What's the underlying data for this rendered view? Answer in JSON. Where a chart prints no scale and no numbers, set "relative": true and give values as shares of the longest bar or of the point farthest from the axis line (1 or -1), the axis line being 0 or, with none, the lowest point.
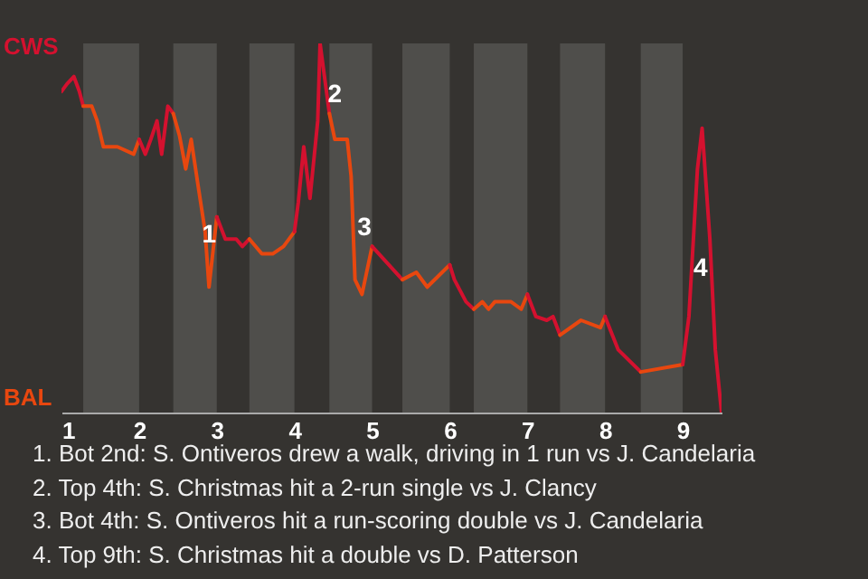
{
  "chart_data": {
    "type": "line",
    "relative": true,
    "series": [
      {
        "color": "#d4112f",
        "x": [
          1.0,
          1.07,
          1.16,
          1.23,
          1.28
        ],
        "values": [
          0.87,
          0.89,
          0.91,
          0.87,
          0.83
        ]
      },
      {
        "color": "#e8470f",
        "x": [
          1.28,
          1.39,
          1.46,
          1.54,
          1.72,
          1.93,
          2.0
        ],
        "values": [
          0.83,
          0.83,
          0.79,
          0.72,
          0.72,
          0.7,
          0.74
        ]
      },
      {
        "color": "#d4112f",
        "x": [
          2.0,
          2.08,
          2.15,
          2.23,
          2.29,
          2.37,
          2.44
        ],
        "values": [
          0.74,
          0.7,
          0.74,
          0.79,
          0.7,
          0.83,
          0.81
        ]
      },
      {
        "color": "#e8470f",
        "x": [
          2.44,
          2.52,
          2.6,
          2.67,
          2.77,
          2.85,
          2.9,
          3.0
        ],
        "values": [
          0.81,
          0.75,
          0.66,
          0.74,
          0.6,
          0.49,
          0.34,
          0.53
        ]
      },
      {
        "color": "#d4112f",
        "x": [
          3.0,
          3.11,
          3.25,
          3.33,
          3.42
        ],
        "values": [
          0.53,
          0.47,
          0.47,
          0.45,
          0.47
        ]
      },
      {
        "color": "#e8470f",
        "x": [
          3.42,
          3.58,
          3.72,
          3.86,
          4.0
        ],
        "values": [
          0.47,
          0.43,
          0.43,
          0.45,
          0.49
        ]
      },
      {
        "color": "#d4112f",
        "x": [
          4.0,
          4.05,
          4.12,
          4.2,
          4.3,
          4.33,
          4.45
        ],
        "values": [
          0.49,
          0.57,
          0.72,
          0.58,
          0.79,
          1,
          0.81
        ]
      },
      {
        "color": "#e8470f",
        "x": [
          4.45,
          4.52,
          4.68,
          4.73,
          4.78,
          4.87,
          5.0
        ],
        "values": [
          0.81,
          0.74,
          0.74,
          0.64,
          0.36,
          0.32,
          0.45
        ]
      },
      {
        "color": "#d4112f",
        "x": [
          5.0,
          5.39
        ],
        "values": [
          0.45,
          0.36
        ]
      },
      {
        "color": "#e8470f",
        "x": [
          5.39,
          5.57,
          5.71,
          6.0
        ],
        "values": [
          0.36,
          0.38,
          0.34,
          0.4
        ]
      },
      {
        "color": "#d4112f",
        "x": [
          6.0,
          6.06,
          6.21,
          6.31
        ],
        "values": [
          0.4,
          0.36,
          0.3,
          0.28
        ]
      },
      {
        "color": "#e8470f",
        "x": [
          6.31,
          6.42,
          6.5,
          6.58,
          6.79,
          6.92,
          7.0
        ],
        "values": [
          0.28,
          0.3,
          0.28,
          0.3,
          0.3,
          0.28,
          0.32
        ]
      },
      {
        "color": "#d4112f",
        "x": [
          7.0,
          7.11,
          7.25,
          7.33,
          7.42
        ],
        "values": [
          0.32,
          0.26,
          0.25,
          0.26,
          0.21
        ]
      },
      {
        "color": "#e8470f",
        "x": [
          7.42,
          7.69,
          7.94,
          8.0
        ],
        "values": [
          0.21,
          0.25,
          0.23,
          0.26
        ]
      },
      {
        "color": "#d4112f",
        "x": [
          8.0,
          8.17,
          8.46
        ],
        "values": [
          0.26,
          0.17,
          0.11
        ]
      },
      {
        "color": "#e8470f",
        "x": [
          8.46,
          9.0
        ],
        "values": [
          0.11,
          0.13
        ]
      },
      {
        "color": "#d4112f",
        "x": [
          9.0,
          9.08,
          9.19,
          9.25,
          9.35,
          9.42,
          9.5
        ],
        "values": [
          0.13,
          0.26,
          0.66,
          0.77,
          0.47,
          0.17,
          0
        ]
      }
    ],
    "xlim": [
      1,
      9.5
    ],
    "xticks": [
      1,
      2,
      3,
      4,
      5,
      6,
      7,
      8,
      9
    ],
    "bands": [
      {
        "axis": "x",
        "from": 1.28,
        "to": 2,
        "color": "#4f4e4b"
      },
      {
        "axis": "x",
        "from": 2.44,
        "to": 3,
        "color": "#4f4e4b"
      },
      {
        "axis": "x",
        "from": 3.42,
        "to": 4,
        "color": "#4f4e4b"
      },
      {
        "axis": "x",
        "from": 4.45,
        "to": 5,
        "color": "#4f4e4b"
      },
      {
        "axis": "x",
        "from": 5.39,
        "to": 6,
        "color": "#4f4e4b"
      },
      {
        "axis": "x",
        "from": 6.31,
        "to": 7,
        "color": "#4f4e4b"
      },
      {
        "axis": "x",
        "from": 7.42,
        "to": 8,
        "color": "#4f4e4b"
      },
      {
        "axis": "x",
        "from": 8.46,
        "to": 9,
        "color": "#4f4e4b"
      }
    ],
    "annotations": [
      {
        "text": "1",
        "x": 2.9,
        "y": 0.48
      },
      {
        "text": "2",
        "x": 4.52,
        "y": 0.86
      },
      {
        "text": "3",
        "x": 4.9,
        "y": 0.5
      },
      {
        "text": "4",
        "x": 9.23,
        "y": 0.39
      },
      "CWS",
      "BAL",
      "1. Bot 2nd: S. Ontiveros drew a walk, driving in 1 run vs J. Candelaria",
      "2. Top 4th: S. Christmas hit a 2-run single vs J. Clancy",
      "3. Bot 4th: S. Ontiveros hit a run-scoring double vs J. Candelaria",
      "4. Top 9th: S. Christmas hit a double vs D. Patterson"
    ]
  }
}
